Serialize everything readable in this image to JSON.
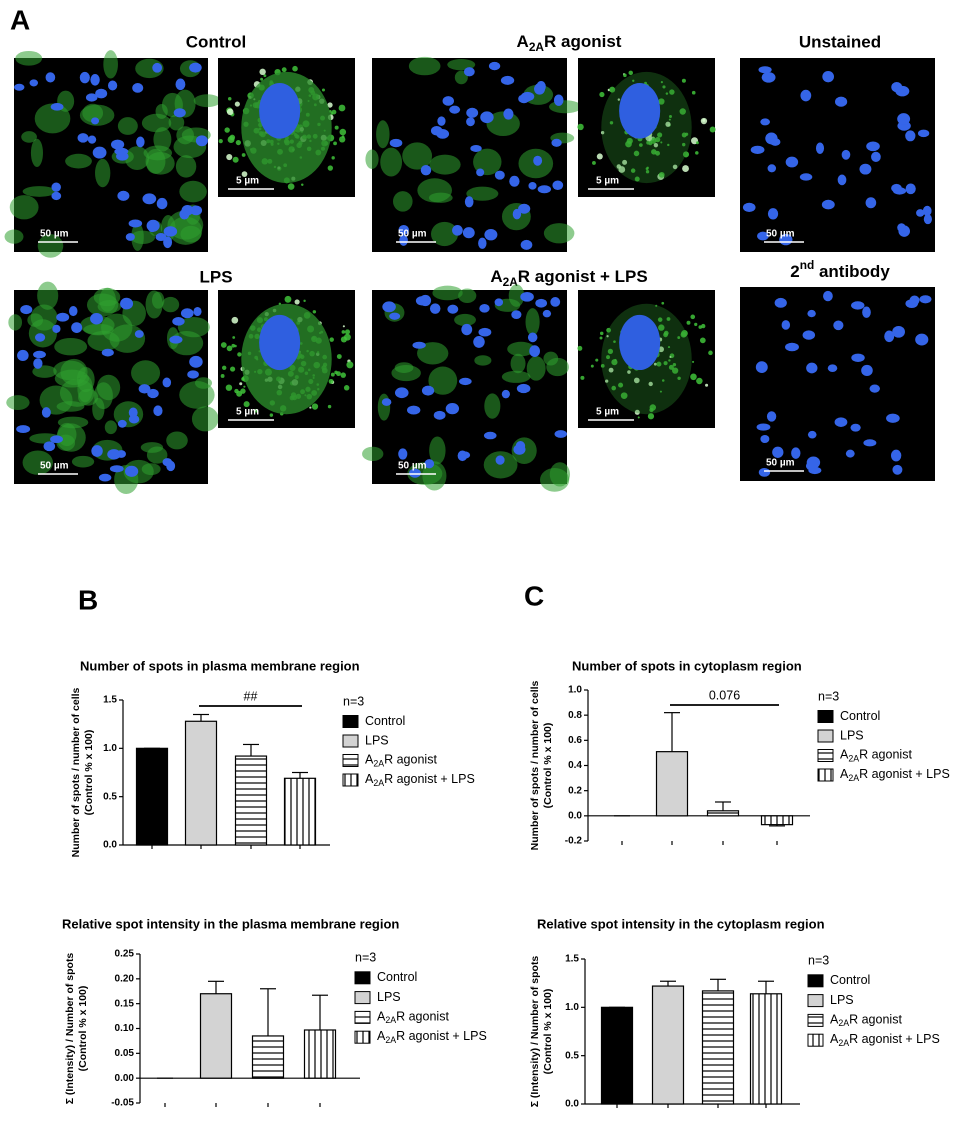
{
  "figure_a": {
    "label": "A",
    "panels": [
      {
        "title": "Control",
        "scale_large": "50 µm",
        "scale_small": "5 µm"
      },
      {
        "title": "A2AR agonist",
        "scale_large": "50 µm",
        "scale_small": "5 µm"
      },
      {
        "title": "Unstained",
        "scale_large": "50 µm"
      },
      {
        "title": "LPS",
        "scale_large": "50 µm",
        "scale_small": "5 µm"
      },
      {
        "title": "A2AR agonist + LPS",
        "scale_large": "50 µm",
        "scale_small": "5 µm"
      },
      {
        "title": "2nd antibody",
        "scale_large": "50 µm"
      }
    ]
  },
  "panel_labels": {
    "b": "B",
    "c": "C"
  },
  "chart_data": [
    {
      "type": "bar",
      "title": "Number of spots in plasma membrane region",
      "ylabel": [
        "Number of spots / number of cells",
        "(Control % x 100)"
      ],
      "legend_title": "n=3",
      "annotation": "##",
      "ylim": [
        0,
        1.5
      ],
      "yticks": [
        {
          "value": 0,
          "label": "0.0"
        },
        0.5,
        {
          "value": 1,
          "label": "1.0"
        },
        1.5
      ],
      "series": [
        {
          "name": "Control",
          "color": "#000000",
          "pattern": "solid",
          "values": [
            1.0
          ],
          "errors": [
            0
          ]
        },
        {
          "name": "LPS",
          "color": "#d3d3d3",
          "pattern": "solid",
          "values": [
            1.28
          ],
          "errors": [
            0.07
          ]
        },
        {
          "name": "A2AR agonist",
          "color": "#ffffff",
          "pattern": "hlines",
          "values": [
            0.92
          ],
          "errors": [
            0.12
          ]
        },
        {
          "name": "A2AR agonist + LPS",
          "color": "#ffffff",
          "pattern": "vlines",
          "values": [
            0.69
          ],
          "errors": [
            0.06
          ]
        }
      ]
    },
    {
      "type": "bar",
      "title": "Number of spots in cytoplasm region",
      "ylabel": [
        "Number of spots / number of cells",
        "(Control % x 100)"
      ],
      "legend_title": "n=3",
      "annotation": "0.076",
      "ylim": [
        -0.2,
        1.0
      ],
      "yticks": [
        -0.2,
        {
          "value": 0,
          "label": "0.0"
        },
        0.2,
        0.4,
        0.6,
        0.8,
        {
          "value": 1,
          "label": "1.0"
        }
      ],
      "series": [
        {
          "name": "Control",
          "color": "#000000",
          "pattern": "solid",
          "values": [
            0
          ],
          "errors": [
            0
          ]
        },
        {
          "name": "LPS",
          "color": "#d3d3d3",
          "pattern": "solid",
          "values": [
            0.51
          ],
          "errors": [
            0.31
          ]
        },
        {
          "name": "A2AR agonist",
          "color": "#ffffff",
          "pattern": "hlines",
          "values": [
            0.04
          ],
          "errors": [
            0.07
          ]
        },
        {
          "name": "A2AR agonist + LPS",
          "color": "#ffffff",
          "pattern": "vlines",
          "values": [
            -0.07
          ],
          "errors": [
            0.01
          ]
        }
      ]
    },
    {
      "type": "bar",
      "title": "Relative spot intensity in the plasma membrane region",
      "ylabel": [
        "Σ (Intensity) / Number of spots",
        "(Control % x 100)"
      ],
      "legend_title": "n=3",
      "ylim": [
        -0.05,
        0.25
      ],
      "yticks": [
        -0.05,
        {
          "value": 0,
          "label": "0.00"
        },
        0.05,
        {
          "value": 0.1,
          "label": "0.10"
        },
        0.15,
        {
          "value": 0.2,
          "label": "0.20"
        },
        0.25
      ],
      "series": [
        {
          "name": "Control",
          "color": "#000000",
          "pattern": "solid",
          "values": [
            0
          ],
          "errors": [
            0
          ]
        },
        {
          "name": "LPS",
          "color": "#d3d3d3",
          "pattern": "solid",
          "values": [
            0.17
          ],
          "errors": [
            0.025
          ]
        },
        {
          "name": "A2AR agonist",
          "color": "#ffffff",
          "pattern": "hlines",
          "values": [
            0.085
          ],
          "errors": [
            0.095
          ]
        },
        {
          "name": "A2AR agonist + LPS",
          "color": "#ffffff",
          "pattern": "vlines",
          "values": [
            0.097
          ],
          "errors": [
            0.07
          ]
        }
      ]
    },
    {
      "type": "bar",
      "title": "Relative spot intensity in the cytoplasm region",
      "ylabel": [
        "Σ (Intensity) / Number of spots",
        "(Control % x 100)"
      ],
      "legend_title": "n=3",
      "ylim": [
        0,
        1.5
      ],
      "yticks": [
        {
          "value": 0,
          "label": "0.0"
        },
        0.5,
        {
          "value": 1,
          "label": "1.0"
        },
        1.5
      ],
      "series": [
        {
          "name": "Control",
          "color": "#000000",
          "pattern": "solid",
          "values": [
            1.0
          ],
          "errors": [
            0
          ]
        },
        {
          "name": "LPS",
          "color": "#d3d3d3",
          "pattern": "solid",
          "values": [
            1.22
          ],
          "errors": [
            0.05
          ]
        },
        {
          "name": "A2AR agonist",
          "color": "#ffffff",
          "pattern": "hlines",
          "values": [
            1.17
          ],
          "errors": [
            0.12
          ]
        },
        {
          "name": "A2AR agonist + LPS",
          "color": "#ffffff",
          "pattern": "vlines",
          "values": [
            1.14
          ],
          "errors": [
            0.13
          ]
        }
      ]
    }
  ]
}
